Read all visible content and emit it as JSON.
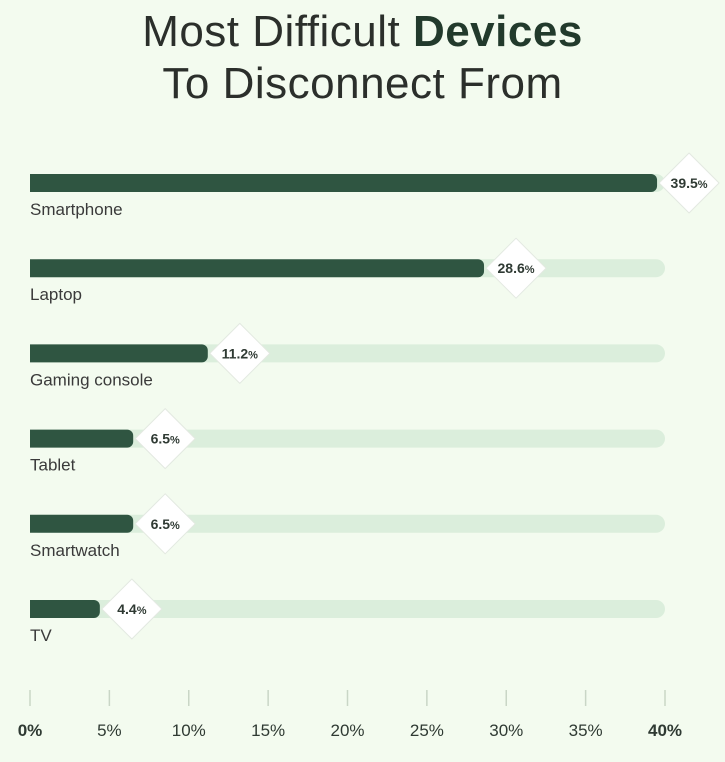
{
  "title": {
    "line1_prefix": "Most Difficult ",
    "line1_bold": "Devices",
    "line2": "To Disconnect From"
  },
  "colors": {
    "bar": "#2f5541",
    "track": "#dbeedc",
    "background": "#f3fbef",
    "axis": "#c9d6c6",
    "badge": "#ffffff"
  },
  "chart_data": {
    "type": "bar",
    "orientation": "horizontal",
    "categories": [
      "Smartphone",
      "Laptop",
      "Gaming console",
      "Tablet",
      "Smartwatch",
      "TV"
    ],
    "values": [
      39.5,
      28.6,
      11.2,
      6.5,
      6.5,
      4.4
    ],
    "value_labels": [
      "39.5",
      "28.6",
      "11.2",
      "6.5",
      "6.5",
      "4.4"
    ],
    "unit": "%",
    "xlim": [
      0,
      40
    ],
    "xticks": [
      "0%",
      "5%",
      "10%",
      "15%",
      "20%",
      "25%",
      "30%",
      "35%",
      "40%"
    ],
    "xtick_values": [
      0,
      5,
      10,
      15,
      20,
      25,
      30,
      35,
      40
    ],
    "bold_ticks": [
      "0%",
      "40%"
    ],
    "grid": false
  }
}
